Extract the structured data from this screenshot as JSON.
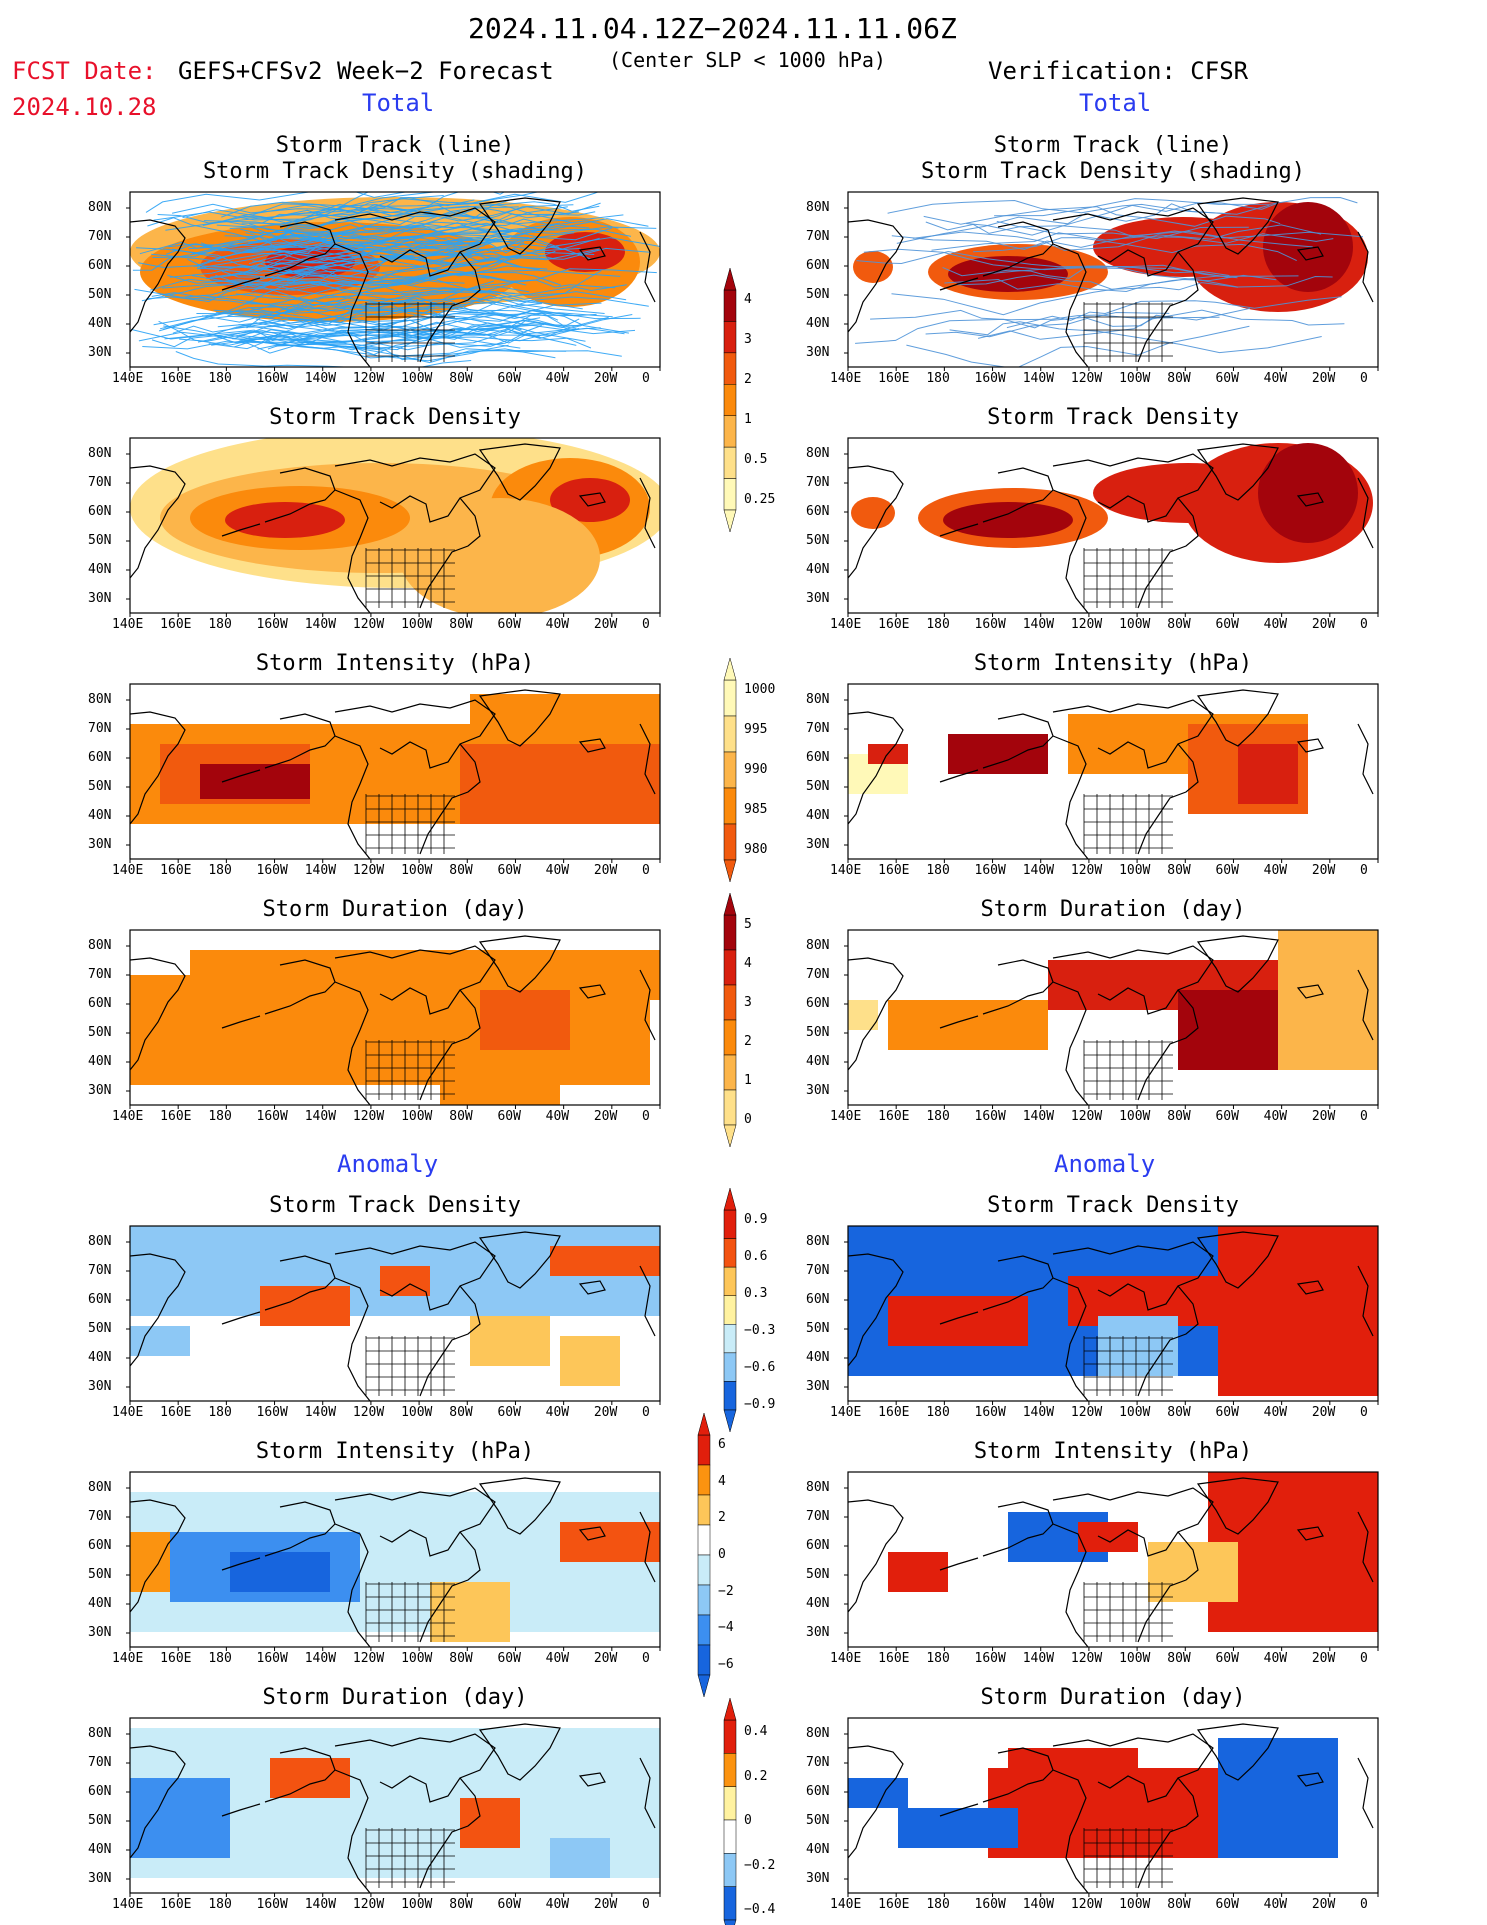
{
  "header": {
    "date_range": "2024.11.04.12Z−2024.11.11.06Z",
    "fcst_label": "FCST Date:",
    "forecast_title": "GEFS+CFSv2 Week−2 Forecast",
    "fcst_date": "2024.10.28",
    "center_condition": "(Center SLP < 1000 hPa)",
    "verification": "Verification: CFSR"
  },
  "sections": {
    "total_left": "Total",
    "total_right": "Total",
    "anomaly_left": "Anomaly",
    "anomaly_right": "Anomaly"
  },
  "panel_titles": {
    "track_line": "Storm Track (line)",
    "track_shading": "Storm Track Density (shading)",
    "density": "Storm Track Density",
    "intensity": "Storm Intensity (hPa)",
    "duration": "Storm Duration (day)"
  },
  "axes": {
    "lon_labels": [
      "140E",
      "160E",
      "180",
      "160W",
      "140W",
      "120W",
      "100W",
      "80W",
      "60W",
      "40W",
      "20W",
      "0"
    ],
    "lat_labels": [
      "80N",
      "70N",
      "60N",
      "50N",
      "40N",
      "30N"
    ]
  },
  "colorbars": {
    "density_total": [
      "4",
      "3",
      "2",
      "1",
      "0.5",
      "0.25"
    ],
    "intensity_total": [
      "1000",
      "995",
      "990",
      "985",
      "980"
    ],
    "duration_total": [
      "5",
      "4",
      "3",
      "2",
      "1",
      "0"
    ],
    "density_anomaly": [
      "0.9",
      "0.6",
      "0.3",
      "−0.3",
      "−0.6",
      "−0.9"
    ],
    "intensity_anomaly": [
      "6",
      "4",
      "2",
      "0",
      "−2",
      "−4",
      "−6"
    ],
    "duration_anomaly": [
      "0.4",
      "0.2",
      "0",
      "−0.2",
      "−0.4"
    ]
  },
  "colors": {
    "seq_palette": [
      "#fff9b8",
      "#fee08a",
      "#fcb54a",
      "#fb8a0c",
      "#f15a0e",
      "#d8200f",
      "#a3040c"
    ],
    "div_palette": [
      "#1765de",
      "#3c8ff0",
      "#8dc8f5",
      "#c9ecf8",
      "#ffffff",
      "#fff2a0",
      "#fdc659",
      "#fb9310",
      "#f35311",
      "#e11f0c"
    ],
    "title_red": "#e8102a",
    "title_blue": "#2a3cf0",
    "track_forecast": "#2aa2f5",
    "track_verification": "#4f93d8"
  }
}
